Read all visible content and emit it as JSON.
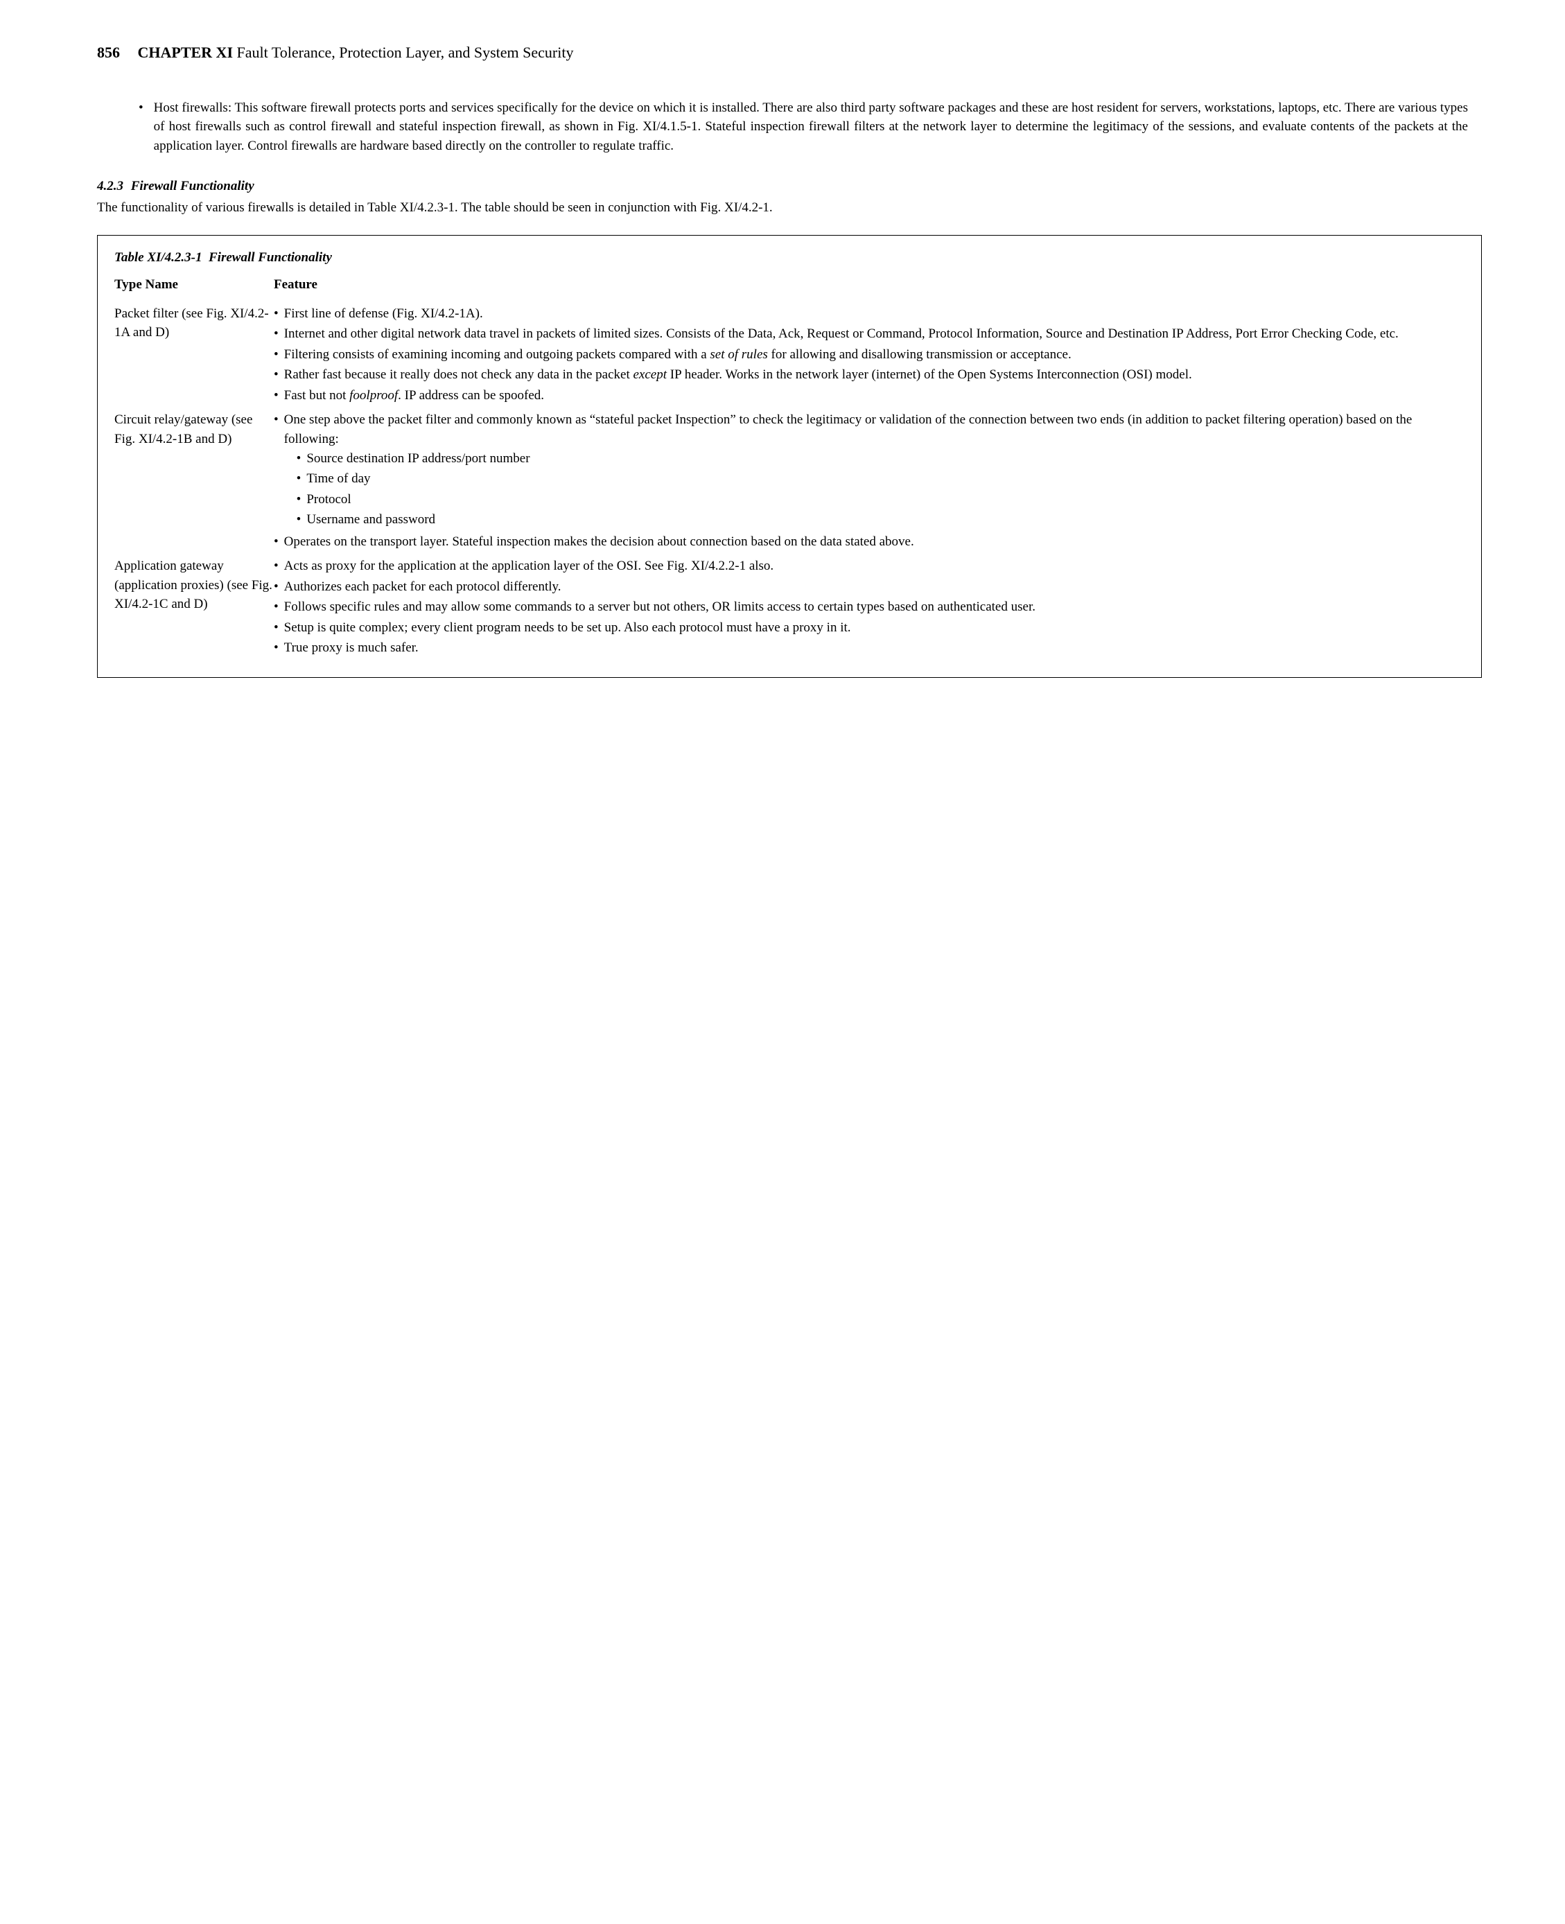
{
  "header": {
    "page_number": "856",
    "chapter_label": "CHAPTER XI",
    "chapter_title": "Fault Tolerance, Protection Layer, and System Security"
  },
  "top_bullet": {
    "text": "Host firewalls: This software firewall protects ports and services specifically for the device on which it is installed. There are also third party software packages and these are host resident for servers, workstations, laptops, etc. There are various types of host firewalls such as control firewall and stateful inspection firewall, as shown in Fig. XI/4.1.5-1. Stateful inspection firewall filters at the network layer to determine the legitimacy of the sessions, and evaluate contents of the packets at the application layer. Control firewalls are hardware based directly on the controller to regulate traffic."
  },
  "section": {
    "number": "4.2.3",
    "title": "Firewall Functionality",
    "intro": "The functionality of various firewalls is detailed in Table XI/4.2.3-1. The table should be seen in conjunction with Fig. XI/4.2-1."
  },
  "table": {
    "caption_label": "Table XI/4.2.3-1",
    "caption_title": "Firewall Functionality",
    "col1": "Type Name",
    "col2": "Feature",
    "rows": [
      {
        "type": "Packet filter (see Fig. XI/4.2-1A and D)",
        "features": [
          {
            "text": "First line of defense (Fig. XI/4.2-1A)."
          },
          {
            "text": "Internet and other digital network data travel in packets of limited sizes. Consists of the Data, Ack, Request or Command, Protocol Information, Source and Destination IP Address, Port Error Checking Code, etc."
          },
          {
            "html": "Filtering consists of examining incoming and outgoing packets compared with a <span class=\"italic\">set of rules</span> for allowing and disallowing transmission or acceptance."
          },
          {
            "html": "Rather fast because it really does not check any data in the packet <span class=\"italic\">except</span> IP header. Works in the network layer (internet) of the Open Systems Interconnection (OSI) model."
          },
          {
            "html": "Fast but not <span class=\"italic\">foolproof</span>. IP address can be spoofed."
          }
        ]
      },
      {
        "type": "Circuit relay/gateway (see Fig. XI/4.2-1B and D)",
        "features": [
          {
            "text": "One step above the packet filter and commonly known as “stateful packet Inspection” to check the legitimacy or validation of the connection between two ends (in addition to packet filtering operation) based on the following:",
            "subs": [
              "Source destination IP address/port number",
              "Time of day",
              "Protocol",
              "Username and password"
            ]
          },
          {
            "text": "Operates on the transport layer. Stateful inspection makes the decision about connection based on the data stated above."
          }
        ]
      },
      {
        "type": "Application gateway (application proxies) (see Fig. XI/4.2-1C and D)",
        "features": [
          {
            "text": "Acts as proxy for the application at the application layer of the OSI. See Fig. XI/4.2.2-1 also."
          },
          {
            "text": "Authorizes each packet for each protocol differently."
          },
          {
            "text": "Follows specific rules and may allow some commands to a server but not others, OR limits access to certain types based on authenticated user."
          },
          {
            "text": "Setup is quite complex; every client program needs to be set up. Also each protocol must have a proxy in it."
          },
          {
            "text": "True proxy is much safer."
          }
        ]
      }
    ]
  }
}
